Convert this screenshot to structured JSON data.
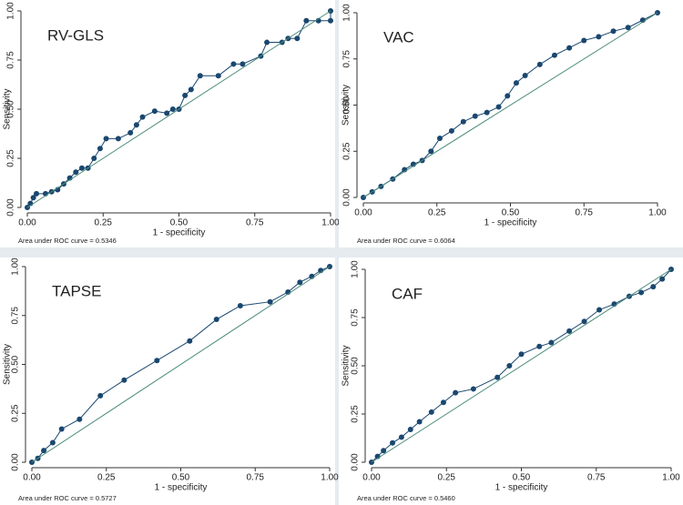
{
  "chart_data": [
    {
      "type": "line",
      "title": "RV-GLS",
      "x_label": "1 - specificity",
      "y_label": "Sensitivity",
      "annotation": "Area under ROC curve = 0.5346",
      "xlim": [
        0,
        1
      ],
      "ylim": [
        0,
        1
      ],
      "xticks": [
        {
          "value": 0,
          "label": "0.00"
        },
        {
          "value": 0.25,
          "label": "0.25"
        },
        {
          "value": 0.5,
          "label": "0.50"
        },
        {
          "value": 0.75,
          "label": "0.75"
        },
        {
          "value": 1,
          "label": "1.00"
        }
      ],
      "yticks": [
        {
          "value": 0,
          "label": "0.00"
        },
        {
          "value": 0.25,
          "label": "0.25"
        },
        {
          "value": 0.5,
          "label": "0.50"
        },
        {
          "value": 0.75,
          "label": "0.75"
        },
        {
          "value": 1,
          "label": "1.00"
        }
      ],
      "series": [
        {
          "color": "#1a476f",
          "markers": true,
          "x": [
            0,
            0.01,
            0.02,
            0.03,
            0.06,
            0.08,
            0.1,
            0.12,
            0.14,
            0.16,
            0.18,
            0.2,
            0.22,
            0.24,
            0.26,
            0.3,
            0.34,
            0.36,
            0.38,
            0.42,
            0.46,
            0.48,
            0.5,
            0.52,
            0.54,
            0.57,
            0.63,
            0.68,
            0.71,
            0.77,
            0.79,
            0.84,
            0.86,
            0.89,
            0.92,
            0.96,
            1,
            1
          ],
          "values": [
            0,
            0.02,
            0.05,
            0.07,
            0.07,
            0.08,
            0.09,
            0.12,
            0.15,
            0.18,
            0.2,
            0.2,
            0.25,
            0.3,
            0.35,
            0.35,
            0.38,
            0.42,
            0.46,
            0.49,
            0.48,
            0.5,
            0.5,
            0.57,
            0.6,
            0.67,
            0.67,
            0.73,
            0.73,
            0.77,
            0.84,
            0.84,
            0.86,
            0.86,
            0.95,
            0.95,
            0.95,
            1
          ]
        },
        {
          "color": "#4a8a7a",
          "markers": false,
          "x": [
            0,
            1
          ],
          "values": [
            0,
            1
          ]
        }
      ]
    },
    {
      "type": "line",
      "title": "VAC",
      "x_label": "1 - specificity",
      "y_label": "Sensitivity",
      "annotation": "Area under ROC curve = 0.6064",
      "xlim": [
        0,
        1
      ],
      "ylim": [
        0,
        1
      ],
      "xticks": [
        {
          "value": 0,
          "label": "0.00"
        },
        {
          "value": 0.25,
          "label": "0.25"
        },
        {
          "value": 0.5,
          "label": "0.50"
        },
        {
          "value": 0.75,
          "label": "0.75"
        },
        {
          "value": 1,
          "label": "1.00"
        }
      ],
      "yticks": [
        {
          "value": 0,
          "label": "0.00"
        },
        {
          "value": 0.25,
          "label": "0.25"
        },
        {
          "value": 0.5,
          "label": "0.50"
        },
        {
          "value": 0.75,
          "label": "0.75"
        },
        {
          "value": 1,
          "label": "1.00"
        }
      ],
      "series": [
        {
          "color": "#1a476f",
          "markers": true,
          "x": [
            0,
            0.03,
            0.06,
            0.1,
            0.14,
            0.17,
            0.2,
            0.23,
            0.26,
            0.3,
            0.34,
            0.38,
            0.42,
            0.46,
            0.49,
            0.52,
            0.55,
            0.6,
            0.65,
            0.7,
            0.75,
            0.8,
            0.85,
            0.9,
            0.95,
            1
          ],
          "values": [
            0,
            0.03,
            0.06,
            0.1,
            0.15,
            0.18,
            0.2,
            0.25,
            0.32,
            0.36,
            0.41,
            0.44,
            0.46,
            0.49,
            0.55,
            0.62,
            0.66,
            0.72,
            0.77,
            0.81,
            0.85,
            0.87,
            0.9,
            0.92,
            0.96,
            1
          ]
        },
        {
          "color": "#4a8a7a",
          "markers": false,
          "x": [
            0,
            1
          ],
          "values": [
            0,
            1
          ]
        }
      ]
    },
    {
      "type": "line",
      "title": "TAPSE",
      "x_label": "1 - specificity",
      "y_label": "Sensitivity",
      "annotation": "Area under ROC curve = 0.5727",
      "xlim": [
        0,
        1
      ],
      "ylim": [
        0,
        1
      ],
      "xticks": [
        {
          "value": 0,
          "label": "0.00"
        },
        {
          "value": 0.25,
          "label": "0.25"
        },
        {
          "value": 0.5,
          "label": "0.50"
        },
        {
          "value": 0.75,
          "label": "0.75"
        },
        {
          "value": 1,
          "label": "1.00"
        }
      ],
      "yticks": [
        {
          "value": 0,
          "label": "0.00"
        },
        {
          "value": 0.25,
          "label": "0.25"
        },
        {
          "value": 0.5,
          "label": "0.50"
        },
        {
          "value": 0.75,
          "label": "0.75"
        },
        {
          "value": 1,
          "label": "1.00"
        }
      ],
      "series": [
        {
          "color": "#1a476f",
          "markers": true,
          "x": [
            0,
            0.02,
            0.04,
            0.07,
            0.1,
            0.16,
            0.23,
            0.31,
            0.42,
            0.53,
            0.62,
            0.7,
            0.8,
            0.86,
            0.9,
            0.94,
            0.97,
            1
          ],
          "values": [
            0,
            0.02,
            0.06,
            0.1,
            0.17,
            0.22,
            0.34,
            0.42,
            0.52,
            0.62,
            0.73,
            0.8,
            0.82,
            0.87,
            0.92,
            0.95,
            0.98,
            1
          ]
        },
        {
          "color": "#4a8a7a",
          "markers": false,
          "x": [
            0,
            1
          ],
          "values": [
            0,
            1
          ]
        }
      ]
    },
    {
      "type": "line",
      "title": "CAF",
      "x_label": "1 - specificity",
      "y_label": "Sensitivity",
      "annotation": "Area under ROC curve = 0.5460",
      "xlim": [
        0,
        1
      ],
      "ylim": [
        0,
        1
      ],
      "xticks": [
        {
          "value": 0,
          "label": "0.00"
        },
        {
          "value": 0.25,
          "label": "0.25"
        },
        {
          "value": 0.5,
          "label": "0.50"
        },
        {
          "value": 0.75,
          "label": "0.75"
        },
        {
          "value": 1,
          "label": "1.00"
        }
      ],
      "yticks": [
        {
          "value": 0,
          "label": "0.00"
        },
        {
          "value": 0.25,
          "label": "0.25"
        },
        {
          "value": 0.5,
          "label": "0.50"
        },
        {
          "value": 0.75,
          "label": "0.75"
        },
        {
          "value": 1,
          "label": "1.00"
        }
      ],
      "series": [
        {
          "color": "#1a476f",
          "markers": true,
          "x": [
            0,
            0.02,
            0.04,
            0.07,
            0.1,
            0.13,
            0.16,
            0.2,
            0.24,
            0.28,
            0.34,
            0.42,
            0.46,
            0.5,
            0.56,
            0.6,
            0.66,
            0.71,
            0.76,
            0.81,
            0.86,
            0.9,
            0.94,
            0.97,
            1
          ],
          "values": [
            0,
            0.03,
            0.06,
            0.1,
            0.13,
            0.17,
            0.21,
            0.26,
            0.31,
            0.36,
            0.38,
            0.44,
            0.5,
            0.56,
            0.6,
            0.62,
            0.68,
            0.73,
            0.79,
            0.82,
            0.86,
            0.88,
            0.91,
            0.95,
            1
          ]
        },
        {
          "color": "#4a8a7a",
          "markers": false,
          "x": [
            0,
            1
          ],
          "values": [
            0,
            1
          ]
        }
      ]
    }
  ]
}
